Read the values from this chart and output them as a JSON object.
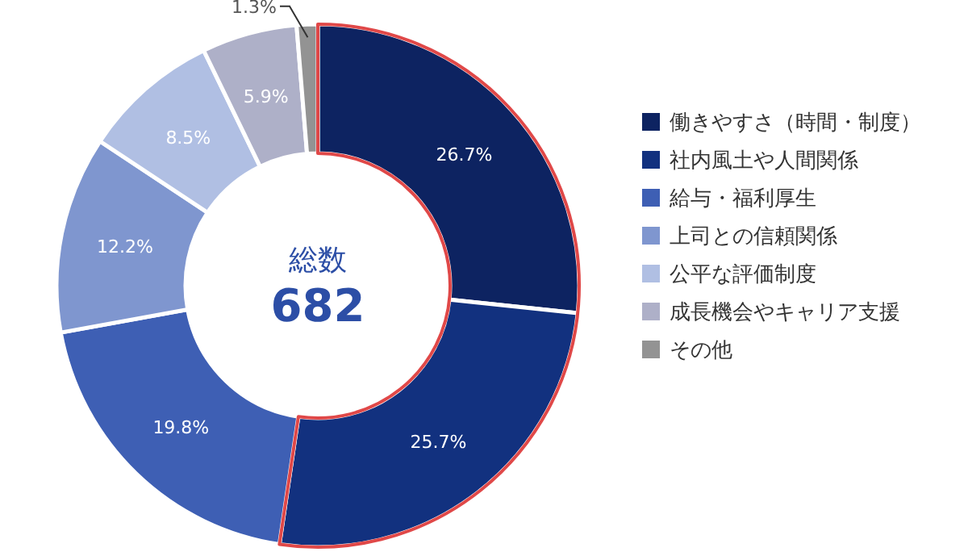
{
  "chart_data": {
    "type": "donut",
    "categories": [
      "働きやすさ（時間・制度）",
      "社内風土や人間関係",
      "給与・福利厚生",
      "上司との信頼関係",
      "公平な評価制度",
      "成長機会やキャリア支援",
      "その他"
    ],
    "values": [
      26.7,
      25.7,
      19.8,
      12.2,
      8.5,
      5.9,
      1.3
    ],
    "value_labels": [
      "26.7%",
      "25.7%",
      "19.8%",
      "12.2%",
      "8.5%",
      "5.9%",
      "1.3%"
    ],
    "colors": [
      "#0d2361",
      "#12317f",
      "#3e5fb4",
      "#7f96cf",
      "#b0bfe3",
      "#aeb0c8",
      "#939393"
    ],
    "annotations": [
      "総数",
      "682"
    ],
    "legend": "right"
  }
}
